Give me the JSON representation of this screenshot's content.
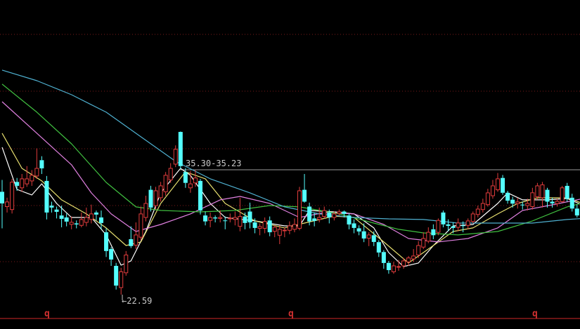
{
  "chart_data": {
    "type": "candlestick",
    "title": "",
    "xlabel": "",
    "ylabel": "",
    "grid": true,
    "colors": {
      "up": "#e03c3c",
      "down": "#54ffff",
      "background": "#000000",
      "grid": "#7a1a1a",
      "axis": "#8b1a1a"
    },
    "ohlc": [
      [
        33.0,
        34.2,
        29.3,
        31.82
      ],
      [
        31.5,
        32.4,
        30.9,
        31.97
      ],
      [
        31.2,
        34.3,
        30.8,
        33.97
      ],
      [
        34.0,
        34.4,
        33.1,
        33.6
      ],
      [
        33.4,
        34.8,
        33.0,
        34.31
      ],
      [
        33.8,
        35.6,
        33.5,
        34.31
      ],
      [
        34.1,
        35.2,
        33.6,
        34.67
      ],
      [
        34.6,
        37.4,
        34.3,
        35.37
      ],
      [
        36.2,
        36.6,
        34.8,
        35.37
      ],
      [
        34.1,
        34.6,
        30.2,
        30.9
      ],
      [
        31.6,
        32.0,
        30.9,
        31.4
      ],
      [
        31.2,
        31.5,
        30.3,
        30.97
      ],
      [
        30.6,
        31.6,
        29.4,
        30.26
      ],
      [
        30.4,
        30.8,
        29.5,
        29.98
      ],
      [
        29.7,
        30.5,
        29.2,
        29.91
      ],
      [
        29.8,
        30.1,
        29.3,
        29.69
      ],
      [
        29.6,
        30.9,
        29.4,
        30.19
      ],
      [
        29.9,
        31.4,
        29.5,
        30.4
      ],
      [
        30.2,
        31.7,
        29.8,
        30.76
      ],
      [
        30.9,
        31.1,
        30.1,
        30.69
      ],
      [
        30.4,
        31.1,
        29.2,
        29.84
      ],
      [
        28.9,
        29.3,
        26.4,
        27.0
      ],
      [
        27.2,
        27.4,
        25.5,
        26.14
      ],
      [
        25.5,
        25.8,
        23.1,
        23.5
      ],
      [
        23.3,
        25.3,
        22.59,
        24.9
      ],
      [
        24.8,
        27.0,
        24.5,
        26.6
      ],
      [
        28.2,
        29.5,
        27.3,
        27.5
      ],
      [
        27.6,
        29.9,
        27.2,
        28.63
      ],
      [
        28.4,
        31.5,
        28.1,
        30.76
      ],
      [
        30.4,
        32.6,
        30.0,
        31.82
      ],
      [
        33.2,
        33.6,
        31.0,
        31.4
      ],
      [
        31.6,
        33.5,
        31.2,
        33.1
      ],
      [
        32.4,
        34.0,
        32.0,
        33.6
      ],
      [
        33.0,
        35.0,
        32.6,
        34.67
      ],
      [
        34.2,
        35.9,
        33.9,
        35.37
      ],
      [
        35.8,
        37.7,
        35.5,
        37.3
      ],
      [
        39.06,
        39.1,
        35.3,
        35.6
      ],
      [
        35.0,
        35.4,
        33.4,
        33.9
      ],
      [
        33.4,
        35.1,
        32.9,
        33.8
      ],
      [
        33.9,
        35.2,
        33.5,
        34.4
      ],
      [
        34.1,
        34.3,
        30.7,
        31.1
      ],
      [
        30.6,
        31.0,
        29.6,
        30.0
      ],
      [
        30.1,
        30.9,
        29.4,
        30.4
      ],
      [
        30.4,
        30.6,
        29.9,
        30.3
      ],
      [
        30.3,
        31.1,
        29.9,
        30.4
      ],
      [
        30.1,
        30.5,
        29.2,
        30.05
      ],
      [
        30.3,
        30.8,
        29.9,
        30.33
      ],
      [
        30.2,
        31.0,
        29.6,
        30.4
      ],
      [
        29.5,
        32.4,
        29.0,
        30.5
      ],
      [
        30.5,
        30.9,
        29.2,
        29.84
      ],
      [
        31.0,
        31.9,
        29.3,
        29.9
      ],
      [
        29.9,
        30.3,
        28.8,
        29.34
      ],
      [
        29.3,
        29.8,
        28.6,
        29.48
      ],
      [
        29.3,
        30.4,
        28.8,
        30.0
      ],
      [
        30.1,
        30.5,
        28.5,
        28.9
      ],
      [
        29.0,
        29.6,
        28.4,
        29.41
      ],
      [
        28.6,
        29.6,
        27.7,
        29.2
      ],
      [
        29.1,
        29.4,
        28.4,
        29.12
      ],
      [
        29.1,
        30.0,
        28.7,
        29.55
      ],
      [
        29.2,
        30.3,
        28.9,
        29.69
      ],
      [
        29.3,
        33.5,
        29.1,
        33.1
      ],
      [
        33.2,
        34.8,
        31.9,
        32.0
      ],
      [
        31.5,
        31.9,
        29.6,
        30.0
      ],
      [
        30.3,
        30.9,
        29.5,
        30.05
      ],
      [
        30.2,
        31.4,
        29.9,
        30.4
      ],
      [
        30.5,
        31.5,
        30.3,
        31.1
      ],
      [
        30.9,
        31.2,
        29.8,
        30.4
      ],
      [
        30.4,
        31.0,
        30.1,
        30.76
      ],
      [
        30.8,
        31.2,
        30.6,
        30.97
      ],
      [
        31.0,
        31.1,
        30.4,
        30.76
      ],
      [
        30.6,
        30.8,
        29.2,
        29.69
      ],
      [
        29.8,
        30.2,
        28.8,
        29.34
      ],
      [
        29.3,
        29.6,
        28.6,
        28.98
      ],
      [
        29.0,
        29.8,
        27.9,
        28.27
      ],
      [
        28.3,
        28.9,
        27.5,
        28.63
      ],
      [
        28.6,
        29.0,
        27.5,
        27.92
      ],
      [
        27.9,
        28.1,
        26.4,
        26.85
      ],
      [
        26.9,
        27.1,
        25.2,
        25.79
      ],
      [
        25.8,
        26.0,
        24.7,
        25.07
      ],
      [
        24.9,
        25.9,
        24.7,
        25.5
      ],
      [
        25.4,
        26.1,
        25.0,
        25.43
      ],
      [
        25.5,
        26.3,
        25.2,
        26.0
      ],
      [
        25.9,
        26.5,
        25.5,
        26.3
      ],
      [
        26.2,
        27.2,
        25.9,
        26.5
      ],
      [
        26.6,
        28.0,
        26.3,
        27.56
      ],
      [
        27.4,
        28.9,
        27.2,
        28.27
      ],
      [
        28.0,
        29.4,
        27.8,
        28.9
      ],
      [
        29.2,
        29.7,
        28.2,
        28.6
      ],
      [
        28.9,
        30.3,
        28.6,
        30.1
      ],
      [
        30.9,
        31.1,
        29.4,
        29.7
      ],
      [
        29.7,
        30.2,
        29.0,
        29.55
      ],
      [
        29.5,
        29.9,
        28.8,
        29.34
      ],
      [
        29.4,
        30.3,
        29.0,
        29.84
      ],
      [
        29.6,
        30.0,
        28.9,
        29.55
      ],
      [
        29.6,
        30.3,
        29.2,
        30.05
      ],
      [
        30.0,
        31.0,
        29.8,
        30.76
      ],
      [
        30.7,
        31.6,
        30.4,
        31.25
      ],
      [
        31.2,
        32.3,
        30.9,
        31.82
      ],
      [
        31.7,
        33.3,
        31.5,
        32.89
      ],
      [
        32.6,
        34.2,
        32.3,
        33.6
      ],
      [
        33.2,
        34.9,
        33.0,
        34.31
      ],
      [
        34.4,
        34.7,
        32.7,
        32.9
      ],
      [
        32.9,
        33.1,
        31.8,
        32.1
      ],
      [
        32.2,
        32.5,
        31.4,
        31.8
      ],
      [
        31.8,
        32.4,
        31.3,
        31.97
      ],
      [
        31.7,
        32.0,
        31.2,
        31.68
      ],
      [
        31.6,
        32.3,
        31.1,
        31.82
      ],
      [
        31.5,
        33.4,
        31.2,
        32.9
      ],
      [
        32.5,
        33.9,
        32.2,
        33.6
      ],
      [
        32.4,
        34.0,
        31.4,
        33.7
      ],
      [
        33.2,
        33.4,
        31.4,
        32.0
      ],
      [
        32.0,
        32.4,
        31.4,
        31.82
      ],
      [
        31.8,
        32.3,
        31.5,
        32.03
      ],
      [
        32.0,
        33.6,
        31.9,
        33.4
      ],
      [
        33.6,
        33.9,
        32.0,
        32.3
      ],
      [
        32.4,
        32.8,
        31.0,
        31.3
      ],
      [
        31.3,
        31.7,
        30.4,
        30.6
      ]
    ],
    "moving_averages": [
      {
        "color": "#ffffff",
        "points": [
          [
            0,
            37.51
          ],
          [
            3,
            33.24
          ],
          [
            6,
            32.68
          ],
          [
            8,
            33.81
          ],
          [
            11,
            31.82
          ],
          [
            14,
            30.4
          ],
          [
            18,
            30.4
          ],
          [
            21,
            28.63
          ],
          [
            24,
            25.57
          ],
          [
            26,
            26.0
          ],
          [
            29,
            28.98
          ],
          [
            32,
            32.89
          ],
          [
            36,
            35.37
          ],
          [
            38,
            34.66
          ],
          [
            42,
            31.82
          ],
          [
            45,
            30.4
          ],
          [
            51,
            30.05
          ],
          [
            57,
            29.55
          ],
          [
            60,
            29.55
          ],
          [
            62,
            31.11
          ],
          [
            67,
            30.97
          ],
          [
            71,
            30.76
          ],
          [
            75,
            29.34
          ],
          [
            78,
            26.85
          ],
          [
            81,
            25.43
          ],
          [
            84,
            25.79
          ],
          [
            87,
            27.56
          ],
          [
            91,
            29.55
          ],
          [
            95,
            29.69
          ],
          [
            100,
            31.82
          ],
          [
            102,
            32.89
          ],
          [
            105,
            32.18
          ],
          [
            110,
            32.18
          ],
          [
            114,
            32.32
          ],
          [
            118,
            31.47
          ]
        ]
      },
      {
        "color": "#e8e070",
        "points": [
          [
            0,
            38.93
          ],
          [
            4,
            35.37
          ],
          [
            8,
            34.1
          ],
          [
            12,
            32.18
          ],
          [
            17,
            30.76
          ],
          [
            21,
            29.34
          ],
          [
            25,
            27.56
          ],
          [
            28,
            27.92
          ],
          [
            32,
            31.82
          ],
          [
            37,
            35.02
          ],
          [
            41,
            34.31
          ],
          [
            45,
            31.82
          ],
          [
            51,
            30.05
          ],
          [
            57,
            29.34
          ],
          [
            61,
            29.83
          ],
          [
            67,
            30.54
          ],
          [
            71,
            30.4
          ],
          [
            77,
            27.92
          ],
          [
            82,
            25.79
          ],
          [
            87,
            27.56
          ],
          [
            91,
            28.98
          ],
          [
            95,
            29.34
          ],
          [
            100,
            30.76
          ],
          [
            104,
            31.82
          ],
          [
            108,
            32.39
          ],
          [
            114,
            32.39
          ],
          [
            118,
            31.68
          ]
        ]
      },
      {
        "color": "#e080e0",
        "points": [
          [
            0,
            42.12
          ],
          [
            7,
            38.93
          ],
          [
            14,
            35.73
          ],
          [
            18,
            32.89
          ],
          [
            22,
            30.76
          ],
          [
            27,
            28.98
          ],
          [
            32,
            29.69
          ],
          [
            38,
            30.76
          ],
          [
            44,
            32.18
          ],
          [
            48,
            32.53
          ],
          [
            54,
            31.82
          ],
          [
            60,
            30.4
          ],
          [
            65,
            30.9
          ],
          [
            71,
            30.76
          ],
          [
            77,
            29.69
          ],
          [
            82,
            28.27
          ],
          [
            88,
            27.92
          ],
          [
            94,
            28.27
          ],
          [
            100,
            29.34
          ],
          [
            105,
            31.11
          ],
          [
            111,
            31.68
          ],
          [
            118,
            32.39
          ]
        ]
      },
      {
        "color": "#40c040",
        "points": [
          [
            0,
            43.9
          ],
          [
            7,
            41.06
          ],
          [
            14,
            37.86
          ],
          [
            21,
            33.95
          ],
          [
            27,
            31.47
          ],
          [
            32,
            31.11
          ],
          [
            40,
            30.97
          ],
          [
            47,
            31.11
          ],
          [
            54,
            31.61
          ],
          [
            60,
            31.47
          ],
          [
            68,
            30.76
          ],
          [
            75,
            29.83
          ],
          [
            80,
            29.2
          ],
          [
            85,
            28.84
          ],
          [
            92,
            28.63
          ],
          [
            100,
            28.98
          ],
          [
            107,
            30.05
          ],
          [
            114,
            31.47
          ],
          [
            118,
            31.97
          ]
        ]
      },
      {
        "color": "#4fb0d0",
        "points": [
          [
            0,
            45.32
          ],
          [
            7,
            44.25
          ],
          [
            14,
            42.83
          ],
          [
            21,
            41.06
          ],
          [
            28,
            38.57
          ],
          [
            35,
            36.08
          ],
          [
            42,
            34.31
          ],
          [
            50,
            32.89
          ],
          [
            57,
            31.47
          ],
          [
            64,
            30.76
          ],
          [
            71,
            30.4
          ],
          [
            78,
            30.26
          ],
          [
            85,
            30.19
          ],
          [
            92,
            29.83
          ],
          [
            100,
            29.83
          ],
          [
            107,
            29.83
          ],
          [
            114,
            30.19
          ],
          [
            118,
            30.33
          ]
        ]
      }
    ],
    "annotations": {
      "high_level": {
        "price": 35.3,
        "text": "35.30-35.23"
      },
      "low_point": {
        "price": 22.59,
        "text": "←22.59"
      }
    },
    "period_markers": [
      "q",
      "q",
      "q"
    ]
  }
}
